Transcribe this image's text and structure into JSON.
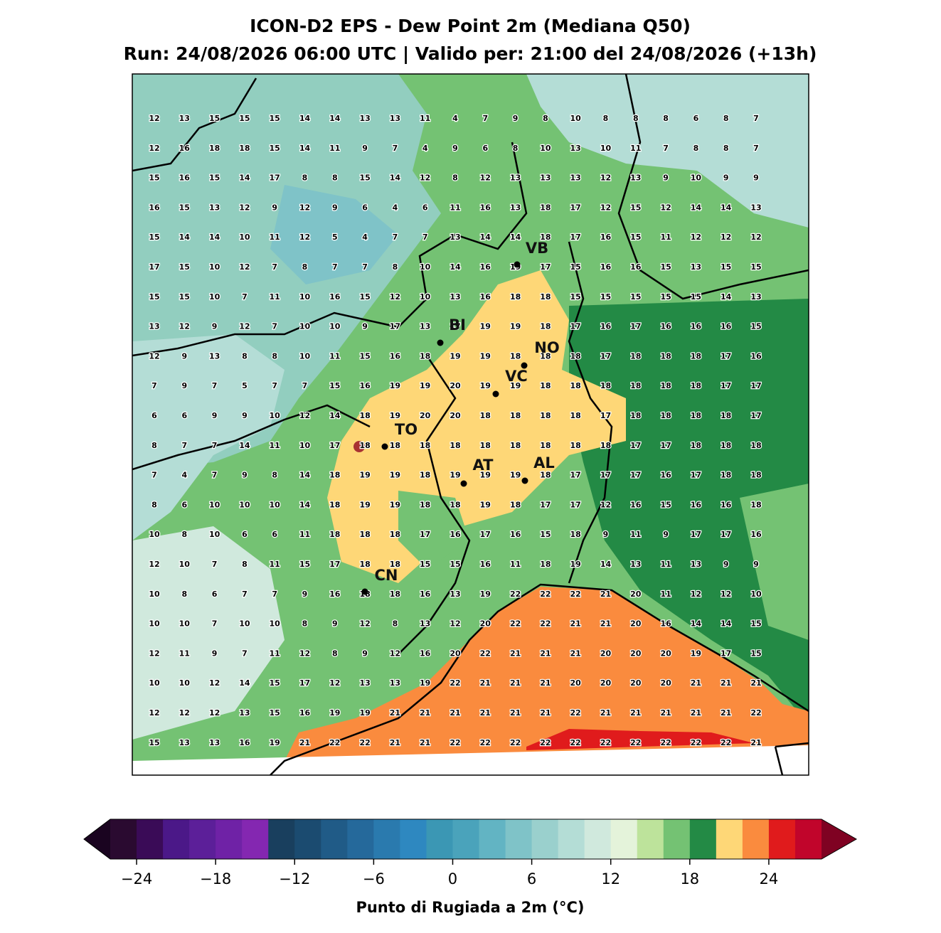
{
  "title": [
    "ICON-D2 EPS - Dew Point 2m (Mediana Q50)",
    "Run: 24/08/2026 06:00 UTC | Valido per: 21:00 del 24/08/2026 (+13h)"
  ],
  "cities": [
    {
      "label": "VB"
    },
    {
      "label": "BI"
    },
    {
      "label": "NO"
    },
    {
      "label": "VC"
    },
    {
      "label": "TO"
    },
    {
      "label": "AT"
    },
    {
      "label": "AL"
    },
    {
      "label": "CN"
    }
  ],
  "grid": [
    [
      12,
      13,
      15,
      15,
      15,
      14,
      14,
      13,
      13,
      11,
      4,
      7,
      9,
      8,
      10,
      8,
      8,
      8,
      6,
      8,
      7
    ],
    [
      12,
      16,
      18,
      18,
      15,
      14,
      11,
      9,
      7,
      4,
      9,
      6,
      8,
      10,
      13,
      10,
      11,
      7,
      8,
      8,
      7
    ],
    [
      15,
      16,
      15,
      14,
      17,
      8,
      8,
      15,
      14,
      12,
      8,
      12,
      13,
      13,
      13,
      12,
      13,
      9,
      10,
      9,
      9
    ],
    [
      16,
      15,
      13,
      12,
      9,
      12,
      9,
      6,
      4,
      6,
      11,
      16,
      13,
      18,
      17,
      12,
      15,
      12,
      14,
      14,
      13
    ],
    [
      15,
      14,
      14,
      10,
      11,
      12,
      5,
      4,
      7,
      7,
      13,
      14,
      14,
      18,
      17,
      16,
      15,
      11,
      12,
      12,
      12
    ],
    [
      17,
      15,
      10,
      12,
      7,
      8,
      7,
      7,
      8,
      10,
      14,
      16,
      19,
      17,
      15,
      16,
      16,
      15,
      13,
      15,
      15
    ],
    [
      15,
      15,
      10,
      7,
      11,
      10,
      16,
      15,
      12,
      10,
      13,
      16,
      18,
      18,
      15,
      15,
      15,
      15,
      15,
      14,
      13
    ],
    [
      13,
      12,
      9,
      12,
      7,
      10,
      10,
      9,
      17,
      13,
      17,
      19,
      19,
      18,
      17,
      16,
      17,
      16,
      16,
      16,
      15
    ],
    [
      12,
      9,
      13,
      8,
      8,
      10,
      11,
      15,
      16,
      18,
      19,
      19,
      18,
      18,
      18,
      17,
      18,
      18,
      18,
      17,
      16
    ],
    [
      7,
      9,
      7,
      5,
      7,
      7,
      15,
      16,
      19,
      19,
      20,
      19,
      19,
      18,
      18,
      18,
      18,
      18,
      18,
      17,
      17
    ],
    [
      6,
      6,
      9,
      9,
      10,
      12,
      14,
      18,
      19,
      20,
      20,
      18,
      18,
      18,
      18,
      17,
      18,
      18,
      18,
      18,
      17
    ],
    [
      8,
      7,
      7,
      14,
      11,
      10,
      17,
      18,
      18,
      18,
      18,
      18,
      18,
      18,
      18,
      18,
      17,
      17,
      18,
      18,
      18
    ],
    [
      7,
      4,
      7,
      9,
      8,
      14,
      18,
      19,
      19,
      18,
      19,
      19,
      19,
      18,
      17,
      17,
      17,
      16,
      17,
      18,
      18
    ],
    [
      8,
      6,
      10,
      10,
      10,
      14,
      18,
      19,
      19,
      18,
      18,
      19,
      18,
      17,
      17,
      12,
      16,
      15,
      16,
      16,
      18
    ],
    [
      10,
      8,
      10,
      6,
      6,
      11,
      18,
      18,
      18,
      17,
      16,
      17,
      16,
      15,
      18,
      9,
      11,
      9,
      17,
      17,
      16
    ],
    [
      12,
      10,
      7,
      8,
      11,
      15,
      17,
      18,
      18,
      15,
      15,
      16,
      11,
      18,
      19,
      14,
      13,
      11,
      13,
      9,
      9
    ],
    [
      10,
      8,
      6,
      7,
      7,
      9,
      16,
      18,
      18,
      16,
      13,
      19,
      22,
      22,
      22,
      21,
      20,
      11,
      12,
      12,
      10
    ],
    [
      10,
      10,
      7,
      10,
      10,
      8,
      9,
      12,
      8,
      13,
      12,
      20,
      22,
      22,
      21,
      21,
      20,
      16,
      14,
      14,
      15
    ],
    [
      12,
      11,
      9,
      7,
      11,
      12,
      8,
      9,
      12,
      16,
      20,
      22,
      21,
      21,
      21,
      20,
      20,
      20,
      19,
      17,
      15
    ],
    [
      10,
      10,
      12,
      14,
      15,
      17,
      12,
      13,
      13,
      19,
      22,
      21,
      21,
      21,
      20,
      20,
      20,
      20,
      21,
      21,
      21
    ],
    [
      12,
      12,
      12,
      13,
      15,
      16,
      19,
      19,
      21,
      21,
      21,
      21,
      21,
      21,
      22,
      21,
      21,
      21,
      21,
      21,
      22
    ],
    [
      15,
      13,
      13,
      16,
      19,
      21,
      22,
      22,
      21,
      21,
      22,
      22,
      22,
      22,
      22,
      22,
      22,
      22,
      22,
      22,
      21
    ]
  ],
  "colorbar": {
    "lim": [
      -26,
      28
    ],
    "colors": [
      "#2a0a30",
      "#3a0b57",
      "#4b1888",
      "#5c1f99",
      "#6f22a6",
      "#8427b1",
      "#193f5e",
      "#1b4b70",
      "#205b87",
      "#25699b",
      "#2a7aae",
      "#2e88c0",
      "#3b97b4",
      "#4aa3bb",
      "#62b4c3",
      "#7fc3c8",
      "#9ad0cd",
      "#b4ddd6",
      "#d0e9dd",
      "#e4f3da",
      "#bde39b",
      "#74c273",
      "#238a45",
      "#fed777",
      "#fa8b3e",
      "#e01b1c",
      "#c1052b"
    ],
    "under": "#1a0420",
    "over": "#7f0222",
    "ticks": [
      {
        "value": -24,
        "label": "−24"
      },
      {
        "value": -18,
        "label": "−18"
      },
      {
        "value": -12,
        "label": "−12"
      },
      {
        "value": -6,
        "label": "−6"
      },
      0,
      6,
      12,
      18,
      24
    ],
    "label": "Punto di Rugiada a 2m (°C)"
  }
}
